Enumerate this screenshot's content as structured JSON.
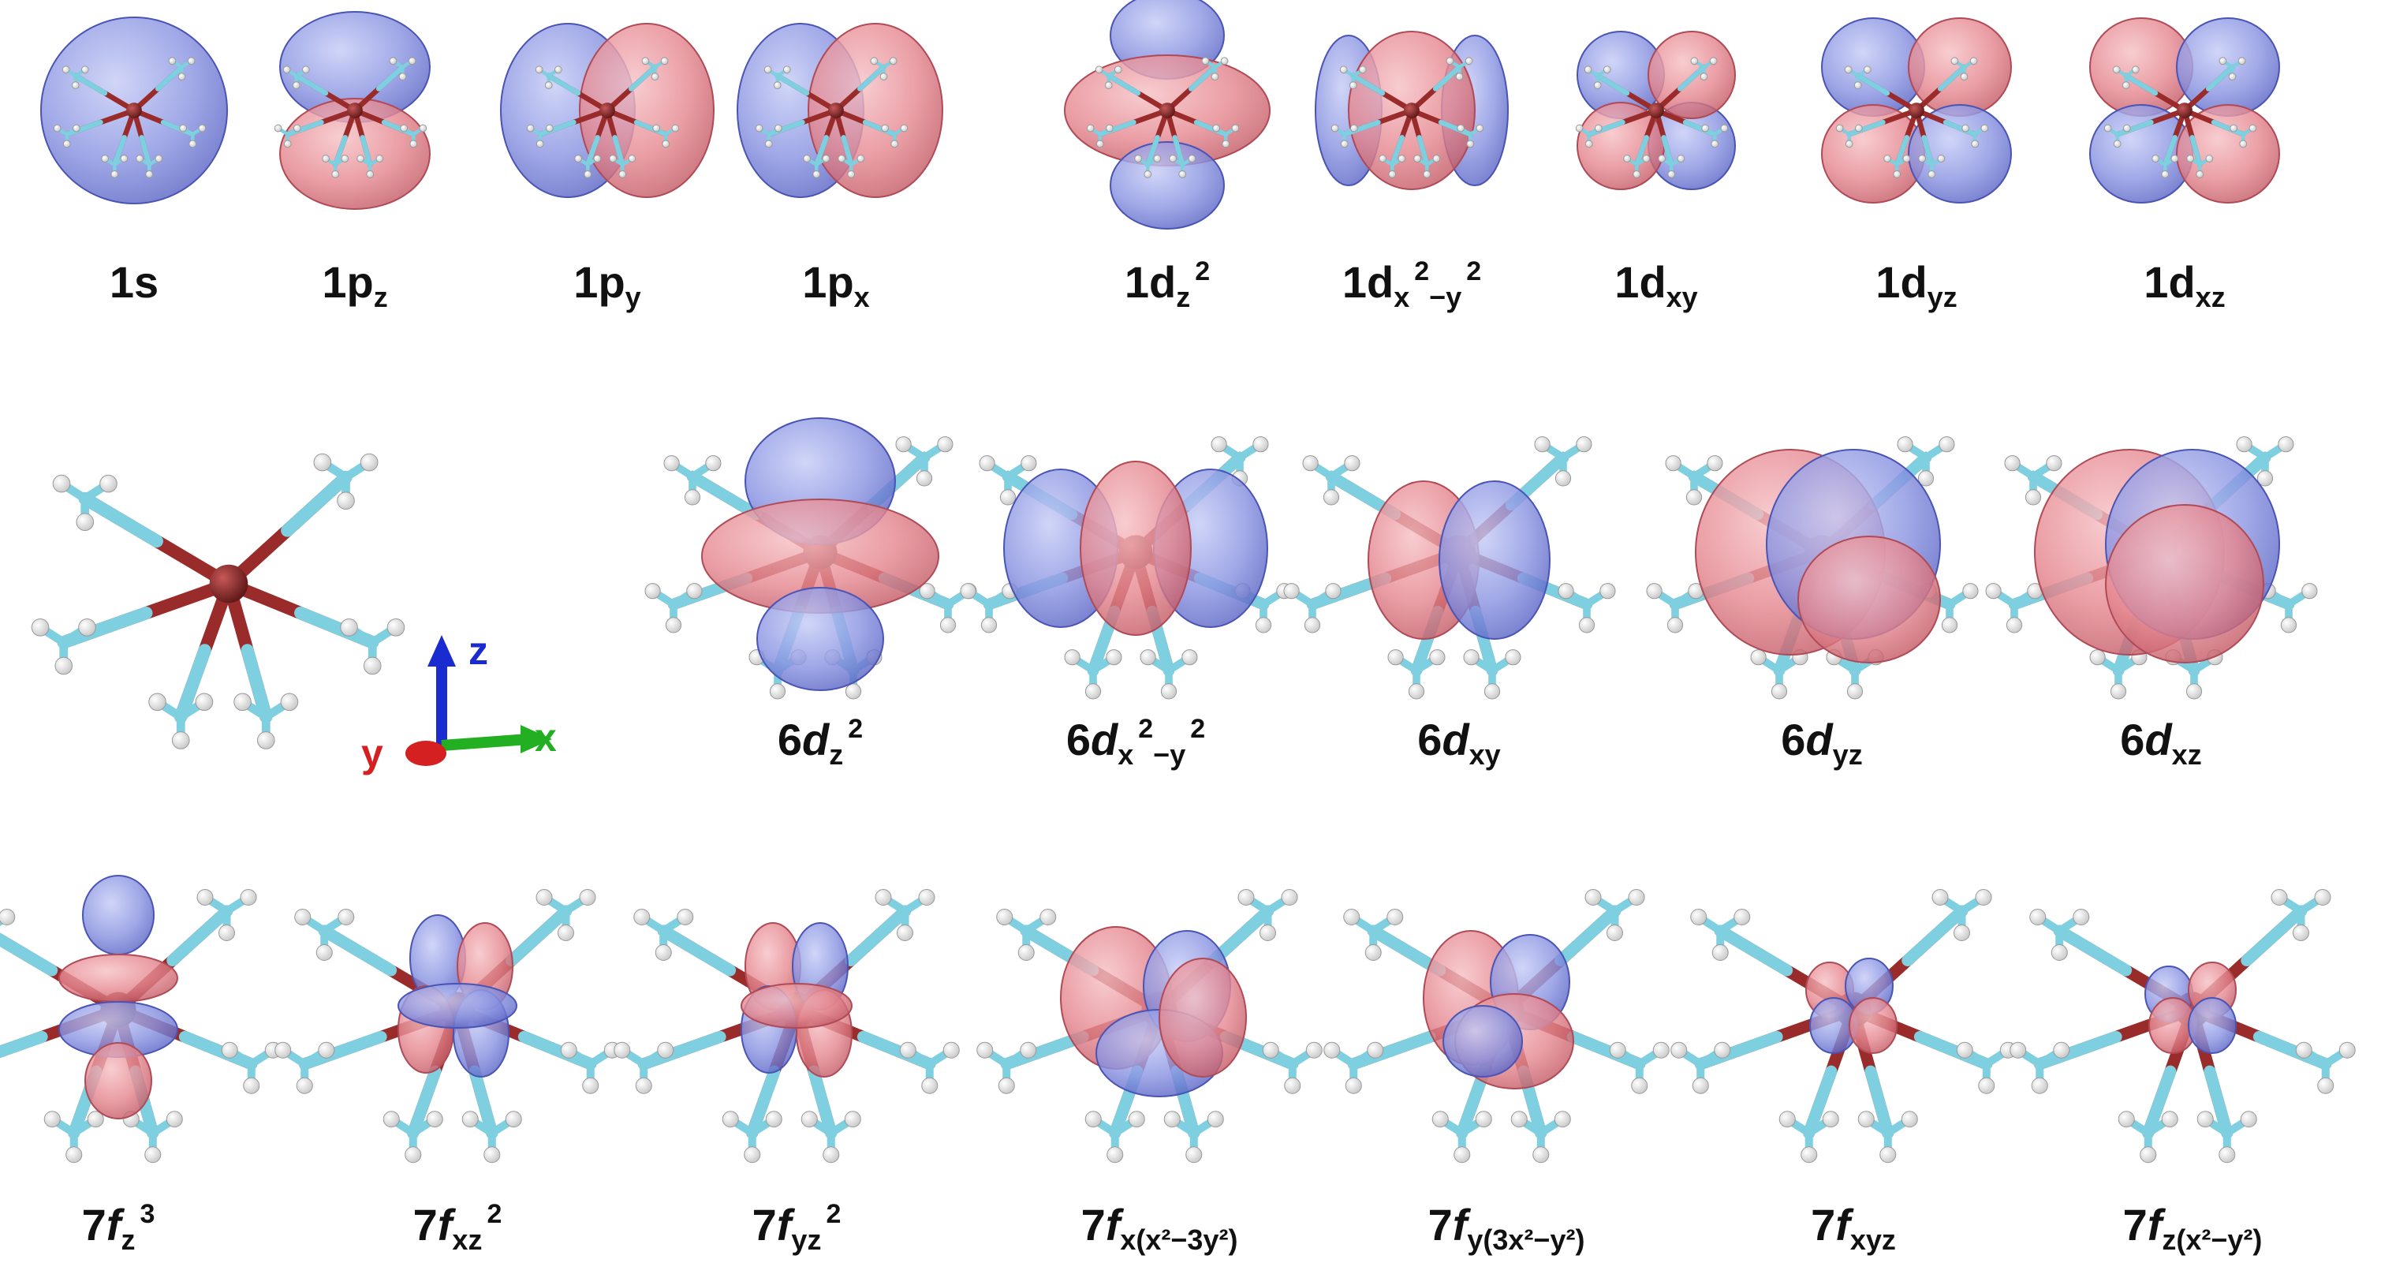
{
  "rows": [
    {
      "kind": "hydrogenic",
      "labels": [
        {
          "main": "1s",
          "sub": "",
          "sup": ""
        },
        {
          "main": "1p",
          "sub": "z",
          "sup": ""
        },
        {
          "main": "1p",
          "sub": "y",
          "sup": ""
        },
        {
          "main": "1p",
          "sub": "x",
          "sup": ""
        },
        {
          "main": "1d",
          "sub": "z",
          "sup": "2"
        },
        {
          "main": "1d",
          "sub": "x",
          "sup": "2",
          "tail": "−y",
          "tailsup": "2"
        },
        {
          "main": "1d",
          "sub": "xy",
          "sup": ""
        },
        {
          "main": "1d",
          "sub": "yz",
          "sup": ""
        },
        {
          "main": "1d",
          "sub": "xz",
          "sup": ""
        }
      ]
    },
    {
      "kind": "6d",
      "labels": [
        {
          "main": "6d",
          "sub": "z",
          "sup": "2"
        },
        {
          "main": "6d",
          "sub": "x",
          "sup": "2",
          "tail": "−y",
          "tailsup": "2"
        },
        {
          "main": "6d",
          "sub": "xy",
          "sup": ""
        },
        {
          "main": "6d",
          "sub": "yz",
          "sup": ""
        },
        {
          "main": "6d",
          "sub": "xz",
          "sup": ""
        }
      ]
    },
    {
      "kind": "7f",
      "labels": [
        {
          "main": "7f",
          "sub": "z",
          "sup": "3"
        },
        {
          "main": "7f",
          "sub": "xz",
          "sup": "2"
        },
        {
          "main": "7f",
          "sub": "yz",
          "sup": "2"
        },
        {
          "main": "7f",
          "subtext": "x(x²−3y²)"
        },
        {
          "main": "7f",
          "subtext": "y(3x²−y²)"
        },
        {
          "main": "7f",
          "sub": "xyz",
          "sup": ""
        },
        {
          "main": "7f",
          "subtext": "z(x²−y²)"
        }
      ]
    }
  ],
  "axes": {
    "z": "z",
    "x": "x",
    "y": "y"
  },
  "colors": {
    "positive_lobe": "#e0707a",
    "negative_lobe": "#7680d8",
    "ligand_carbon": "#7ecfe0",
    "hydrogen": "#f4f4f4",
    "metal": "#8b2a2a",
    "axis_z": "#1a2bd0",
    "axis_x": "#22b022",
    "axis_y": "#d42020"
  }
}
